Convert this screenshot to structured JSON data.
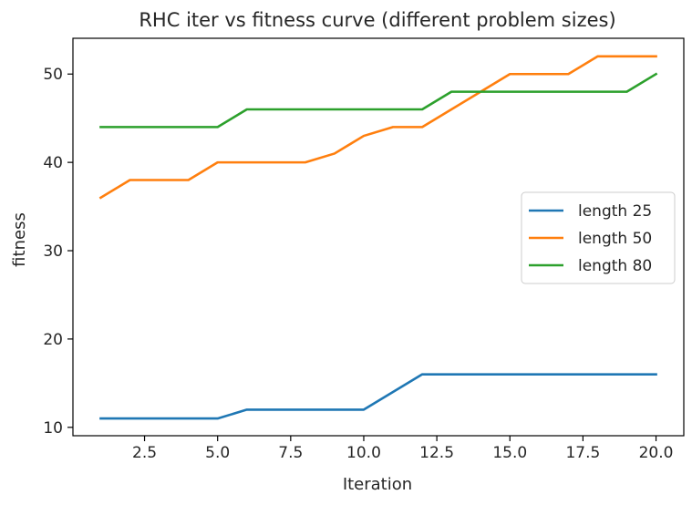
{
  "chart_data": {
    "type": "line",
    "title": "RHC iter vs fitness curve (different problem sizes)",
    "xlabel": "Iteration",
    "ylabel": "fitness",
    "xlim": [
      0.05,
      20.95
    ],
    "ylim": [
      9.05,
      54.05
    ],
    "xticks": [
      "2.5",
      "5.0",
      "7.5",
      "10.0",
      "12.5",
      "15.0",
      "17.5",
      "20.0"
    ],
    "xtick_values": [
      2.5,
      5.0,
      7.5,
      10.0,
      12.5,
      15.0,
      17.5,
      20.0
    ],
    "yticks": [
      "10",
      "20",
      "30",
      "40",
      "50"
    ],
    "ytick_values": [
      10,
      20,
      30,
      40,
      50
    ],
    "grid": false,
    "legend_position": "center-right",
    "x": [
      1,
      2,
      3,
      4,
      5,
      6,
      7,
      8,
      9,
      10,
      11,
      12,
      13,
      14,
      15,
      16,
      17,
      18,
      19,
      20
    ],
    "series": [
      {
        "name": "length 25",
        "color": "#1f77b4",
        "values": [
          11,
          11,
          11,
          11,
          11,
          12,
          12,
          12,
          12,
          12,
          14,
          16,
          16,
          16,
          16,
          16,
          16,
          16,
          16,
          16
        ]
      },
      {
        "name": "length 50",
        "color": "#ff7f0e",
        "values": [
          36,
          38,
          38,
          38,
          40,
          40,
          40,
          40,
          41,
          43,
          44,
          44,
          46,
          48,
          50,
          50,
          50,
          52,
          52,
          52
        ]
      },
      {
        "name": "length 80",
        "color": "#2ca02c",
        "values": [
          44,
          44,
          44,
          44,
          44,
          46,
          46,
          46,
          46,
          46,
          46,
          46,
          48,
          48,
          48,
          48,
          48,
          48,
          48,
          50
        ]
      }
    ]
  }
}
